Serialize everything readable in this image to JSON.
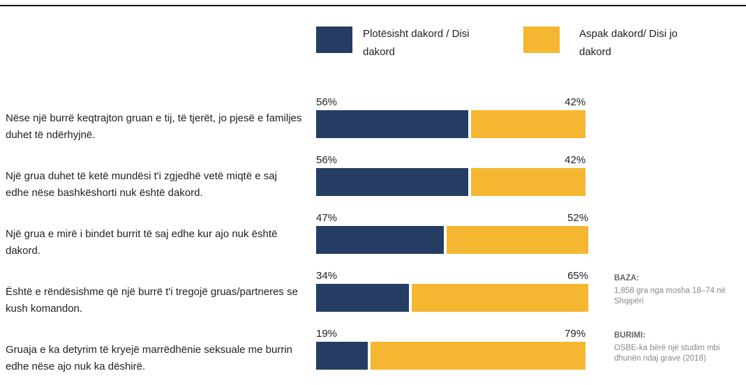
{
  "chart_data": {
    "type": "stacked-bar-horizontal",
    "categories": [
      "Nëse një burrë keqtrajton gruan e tij, të tjerët, jo pjesë e familjes duhet të ndërhyjnë.",
      "Një grua duhet të ketë mundësi t'i zgjedhë vetë miqtë e saj edhe nëse bashkëshorti nuk është dakord.",
      "Një grua e mirë i bindet burrit të saj edhe kur ajo nuk është dakord.",
      "Është e rëndësishme që një burrë t'i tregojë gruas/partneres se kush komandon.",
      "Gruaja e ka detyrim të kryejë marrëdhënie seksuale me burrin edhe nëse ajo nuk ka dëshirë."
    ],
    "series": [
      {
        "name": "Plotësisht dakord / Disi dakord",
        "color": "#253d63",
        "values": [
          56,
          56,
          47,
          34,
          19
        ],
        "value_labels": [
          "56%",
          "56%",
          "47%",
          "34%",
          "19%"
        ]
      },
      {
        "name": "Aspak dakord/ Disi jo dakord",
        "color": "#f5b731",
        "values": [
          42,
          42,
          52,
          65,
          79
        ],
        "value_labels": [
          "42%",
          "42%",
          "52%",
          "65%",
          "79%"
        ]
      }
    ],
    "annotations": [
      {
        "title": "BAZA:",
        "text": "1,858 gra nga mosha 18–74 në Shqipëri"
      },
      {
        "title": "BURIMI:",
        "text": "OSBE-ka bërë një studim mbi dhunën ndaj grave (2018)"
      }
    ]
  }
}
